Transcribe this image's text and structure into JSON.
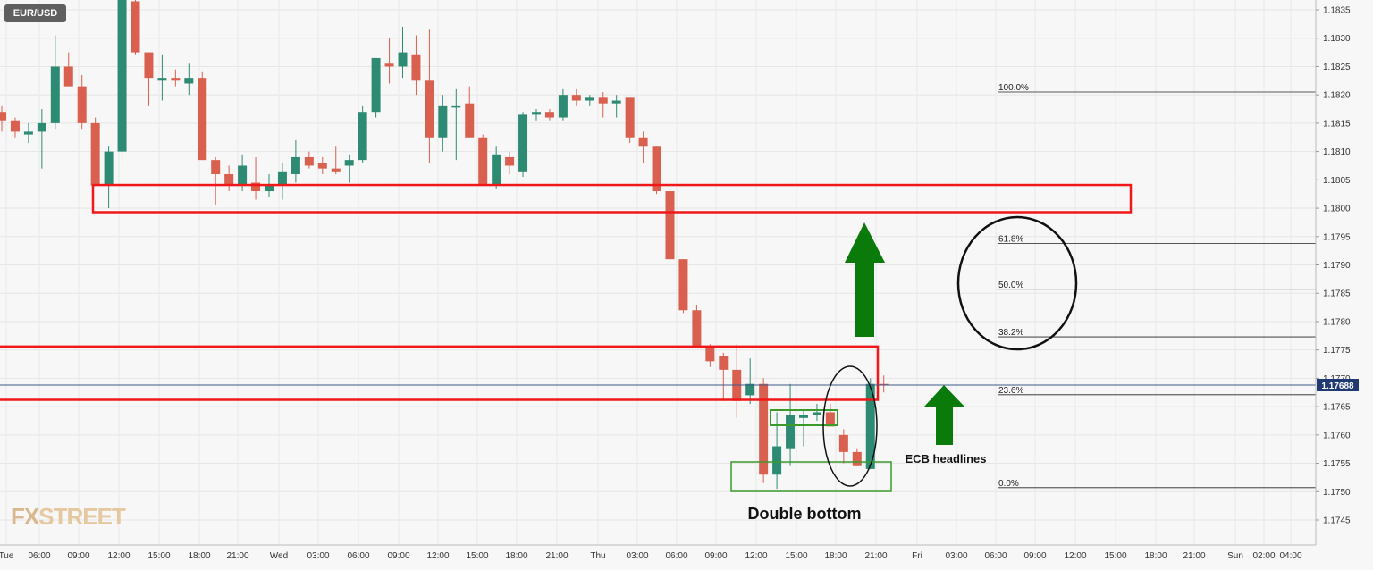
{
  "symbol": "EUR/USD",
  "logo": {
    "part1": "FX",
    "part2": "STREET"
  },
  "colors": {
    "up": "#2e8b73",
    "down": "#d9604f",
    "price_line": "#3c5a88",
    "price_badge": "#1f3a73",
    "zone": "#f01818",
    "green_box": "#3a9a2a",
    "arrow": "#0a7a0a"
  },
  "price_label": "1.17688",
  "annotations": {
    "double_bottom": "Double bottom",
    "ecb": "ECB headlines"
  },
  "chart_data": {
    "type": "candlestick",
    "y_ticks": [
      "1.1835",
      "1.1830",
      "1.1825",
      "1.1820",
      "1.1815",
      "1.1810",
      "1.1805",
      "1.1800",
      "1.1795",
      "1.1790",
      "1.1785",
      "1.1780",
      "1.1775",
      "1.1770",
      "1.1765",
      "1.1760",
      "1.1755",
      "1.1750",
      "1.1745"
    ],
    "ylim": [
      1.17415,
      1.18385
    ],
    "x_labels": [
      "Tue",
      "06:00",
      "09:00",
      "12:00",
      "15:00",
      "18:00",
      "21:00",
      "Wed",
      "03:00",
      "06:00",
      "09:00",
      "12:00",
      "15:00",
      "18:00",
      "21:00",
      "Thu",
      "03:00",
      "06:00",
      "09:00",
      "12:00",
      "15:00",
      "18:00",
      "21:00",
      "Fri",
      "03:00",
      "06:00",
      "09:00",
      "12:00",
      "15:00",
      "18:00",
      "21:00",
      "Sun",
      "02:00",
      "04:00"
    ],
    "fib_levels": [
      {
        "label": "100.0%",
        "value": 1.18205
      },
      {
        "label": "61.8%",
        "value": 1.17938
      },
      {
        "label": "50.0%",
        "value": 1.17857
      },
      {
        "label": "38.2%",
        "value": 1.17773
      },
      {
        "label": "23.6%",
        "value": 1.17671
      },
      {
        "label": "0.0%",
        "value": 1.17507
      }
    ],
    "zones": [
      {
        "from": 1.17993,
        "to": 1.18041
      },
      {
        "from": 1.17662,
        "to": 1.17756
      }
    ],
    "last_price": 1.17688,
    "candles": [
      {
        "o": 1.1817,
        "h": 1.1818,
        "l": 1.18135,
        "c": 1.18155
      },
      {
        "o": 1.18155,
        "h": 1.1816,
        "l": 1.18125,
        "c": 1.18135
      },
      {
        "o": 1.1813,
        "h": 1.1815,
        "l": 1.18115,
        "c": 1.18135
      },
      {
        "o": 1.18135,
        "h": 1.18175,
        "l": 1.1807,
        "c": 1.1815
      },
      {
        "o": 1.1815,
        "h": 1.18305,
        "l": 1.1814,
        "c": 1.1825
      },
      {
        "o": 1.1825,
        "h": 1.18275,
        "l": 1.18215,
        "c": 1.18215
      },
      {
        "o": 1.18215,
        "h": 1.18235,
        "l": 1.1814,
        "c": 1.1815
      },
      {
        "o": 1.1815,
        "h": 1.1816,
        "l": 1.1804,
        "c": 1.1804
      },
      {
        "o": 1.1804,
        "h": 1.1811,
        "l": 1.18,
        "c": 1.181
      },
      {
        "o": 1.181,
        "h": 1.18395,
        "l": 1.1808,
        "c": 1.1837
      },
      {
        "o": 1.18365,
        "h": 1.18395,
        "l": 1.1827,
        "c": 1.18275
      },
      {
        "o": 1.18275,
        "h": 1.18275,
        "l": 1.1818,
        "c": 1.1823
      },
      {
        "o": 1.18225,
        "h": 1.1827,
        "l": 1.1819,
        "c": 1.1823
      },
      {
        "o": 1.1823,
        "h": 1.18245,
        "l": 1.18215,
        "c": 1.18225
      },
      {
        "o": 1.1822,
        "h": 1.18255,
        "l": 1.182,
        "c": 1.1823
      },
      {
        "o": 1.1823,
        "h": 1.1824,
        "l": 1.18085,
        "c": 1.18085
      },
      {
        "o": 1.18085,
        "h": 1.1809,
        "l": 1.18005,
        "c": 1.1806
      },
      {
        "o": 1.1806,
        "h": 1.18075,
        "l": 1.1803,
        "c": 1.1804
      },
      {
        "o": 1.1804,
        "h": 1.18095,
        "l": 1.1803,
        "c": 1.18075
      },
      {
        "o": 1.18045,
        "h": 1.1809,
        "l": 1.18015,
        "c": 1.1803
      },
      {
        "o": 1.1803,
        "h": 1.1806,
        "l": 1.1802,
        "c": 1.1804
      },
      {
        "o": 1.1804,
        "h": 1.1808,
        "l": 1.18015,
        "c": 1.18065
      },
      {
        "o": 1.1806,
        "h": 1.1812,
        "l": 1.18045,
        "c": 1.1809
      },
      {
        "o": 1.1809,
        "h": 1.181,
        "l": 1.1807,
        "c": 1.18075
      },
      {
        "o": 1.1808,
        "h": 1.1809,
        "l": 1.1806,
        "c": 1.1807
      },
      {
        "o": 1.1807,
        "h": 1.1811,
        "l": 1.1806,
        "c": 1.18065
      },
      {
        "o": 1.18075,
        "h": 1.18095,
        "l": 1.18045,
        "c": 1.18085
      },
      {
        "o": 1.18085,
        "h": 1.1818,
        "l": 1.1808,
        "c": 1.1817
      },
      {
        "o": 1.1817,
        "h": 1.18265,
        "l": 1.1816,
        "c": 1.18265
      },
      {
        "o": 1.18255,
        "h": 1.183,
        "l": 1.1822,
        "c": 1.1825
      },
      {
        "o": 1.1825,
        "h": 1.1832,
        "l": 1.1823,
        "c": 1.18275
      },
      {
        "o": 1.1827,
        "h": 1.18305,
        "l": 1.182,
        "c": 1.18225
      },
      {
        "o": 1.18225,
        "h": 1.18315,
        "l": 1.1808,
        "c": 1.18125
      },
      {
        "o": 1.18125,
        "h": 1.182,
        "l": 1.181,
        "c": 1.1818
      },
      {
        "o": 1.1818,
        "h": 1.1821,
        "l": 1.18085,
        "c": 1.1818
      },
      {
        "o": 1.18185,
        "h": 1.18215,
        "l": 1.1813,
        "c": 1.18125
      },
      {
        "o": 1.18125,
        "h": 1.1813,
        "l": 1.1804,
        "c": 1.1804
      },
      {
        "o": 1.1804,
        "h": 1.1811,
        "l": 1.18035,
        "c": 1.18095
      },
      {
        "o": 1.1809,
        "h": 1.181,
        "l": 1.1806,
        "c": 1.18075
      },
      {
        "o": 1.18065,
        "h": 1.1817,
        "l": 1.18055,
        "c": 1.18165
      },
      {
        "o": 1.18165,
        "h": 1.18175,
        "l": 1.18155,
        "c": 1.1817
      },
      {
        "o": 1.1817,
        "h": 1.18175,
        "l": 1.18155,
        "c": 1.1816
      },
      {
        "o": 1.1816,
        "h": 1.1821,
        "l": 1.18155,
        "c": 1.182
      },
      {
        "o": 1.182,
        "h": 1.1821,
        "l": 1.1818,
        "c": 1.1819
      },
      {
        "o": 1.1819,
        "h": 1.182,
        "l": 1.1818,
        "c": 1.18195
      },
      {
        "o": 1.18195,
        "h": 1.18205,
        "l": 1.1816,
        "c": 1.18185
      },
      {
        "o": 1.18185,
        "h": 1.182,
        "l": 1.1816,
        "c": 1.1819
      },
      {
        "o": 1.18195,
        "h": 1.18195,
        "l": 1.18115,
        "c": 1.18125
      },
      {
        "o": 1.18125,
        "h": 1.18135,
        "l": 1.1808,
        "c": 1.1811
      },
      {
        "o": 1.1811,
        "h": 1.1811,
        "l": 1.18025,
        "c": 1.1803
      },
      {
        "o": 1.1803,
        "h": 1.18025,
        "l": 1.17905,
        "c": 1.1791
      },
      {
        "o": 1.1791,
        "h": 1.1791,
        "l": 1.17815,
        "c": 1.1782
      },
      {
        "o": 1.1782,
        "h": 1.1783,
        "l": 1.17755,
        "c": 1.17755
      },
      {
        "o": 1.17755,
        "h": 1.1776,
        "l": 1.1772,
        "c": 1.1773
      },
      {
        "o": 1.1774,
        "h": 1.17745,
        "l": 1.1766,
        "c": 1.17715
      },
      {
        "o": 1.17715,
        "h": 1.1776,
        "l": 1.1763,
        "c": 1.1766
      },
      {
        "o": 1.1767,
        "h": 1.17735,
        "l": 1.17655,
        "c": 1.1769
      },
      {
        "o": 1.1769,
        "h": 1.177,
        "l": 1.17515,
        "c": 1.1753
      },
      {
        "o": 1.1753,
        "h": 1.1764,
        "l": 1.17505,
        "c": 1.1758
      },
      {
        "o": 1.17575,
        "h": 1.1769,
        "l": 1.17545,
        "c": 1.17635
      },
      {
        "o": 1.1763,
        "h": 1.17645,
        "l": 1.1758,
        "c": 1.17635
      },
      {
        "o": 1.17635,
        "h": 1.17655,
        "l": 1.17625,
        "c": 1.1764
      },
      {
        "o": 1.1764,
        "h": 1.17655,
        "l": 1.1762,
        "c": 1.17615
      },
      {
        "o": 1.176,
        "h": 1.1761,
        "l": 1.1755,
        "c": 1.1757
      },
      {
        "o": 1.1757,
        "h": 1.17575,
        "l": 1.17545,
        "c": 1.17545
      },
      {
        "o": 1.1754,
        "h": 1.177,
        "l": 1.1754,
        "c": 1.1769
      },
      {
        "o": 1.1769,
        "h": 1.17705,
        "l": 1.17675,
        "c": 1.17688
      }
    ]
  }
}
